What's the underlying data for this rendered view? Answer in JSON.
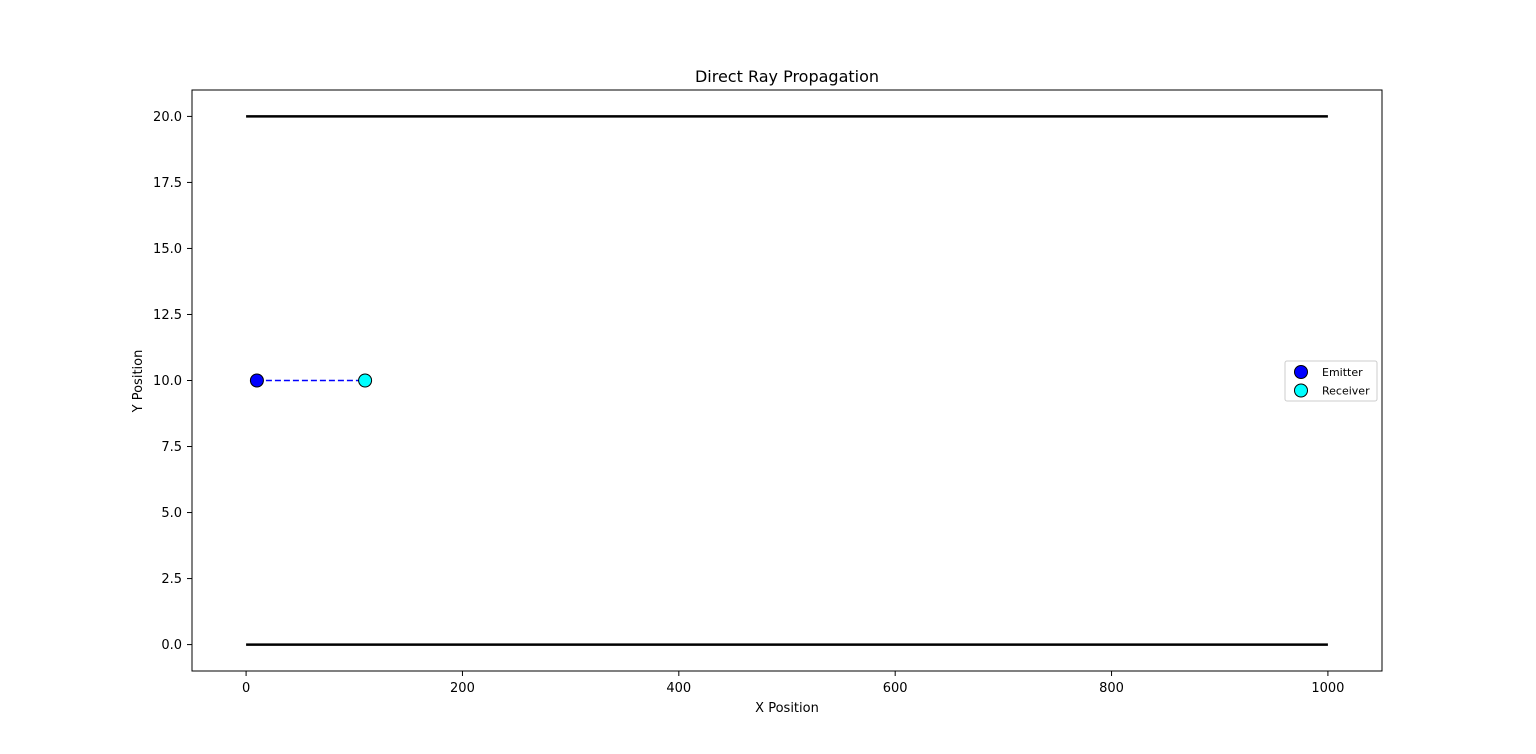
{
  "chart_data": {
    "type": "line",
    "title": "Direct Ray Propagation",
    "xlabel": "X Position",
    "ylabel": "Y Position",
    "xlim": [
      -50,
      1050
    ],
    "ylim": [
      -1,
      21
    ],
    "xticks": [
      0,
      200,
      400,
      600,
      800,
      1000
    ],
    "xtick_labels": [
      "0",
      "200",
      "400",
      "600",
      "800",
      "1000"
    ],
    "yticks": [
      0,
      2.5,
      5,
      7.5,
      10,
      12.5,
      15,
      17.5,
      20
    ],
    "ytick_labels": [
      "0.0",
      "2.5",
      "5.0",
      "7.5",
      "10.0",
      "12.5",
      "15.0",
      "17.5",
      "20.0"
    ],
    "grid": false,
    "boundaries": [
      {
        "x": [
          0,
          1000
        ],
        "y": [
          0,
          0
        ],
        "color": "#000000"
      },
      {
        "x": [
          0,
          1000
        ],
        "y": [
          20,
          20
        ],
        "color": "#000000"
      }
    ],
    "ray": {
      "x": [
        10,
        110
      ],
      "y": [
        10,
        10
      ],
      "color": "#0000ff",
      "style": "dashed"
    },
    "points": [
      {
        "name": "Emitter",
        "x": 10,
        "y": 10,
        "color": "#0000ff"
      },
      {
        "name": "Receiver",
        "x": 110,
        "y": 10,
        "color": "#00ffff"
      }
    ],
    "legend": {
      "placement": "center-right",
      "entries": [
        {
          "label": "Emitter",
          "color": "#0000ff"
        },
        {
          "label": "Receiver",
          "color": "#00ffff"
        }
      ]
    }
  }
}
